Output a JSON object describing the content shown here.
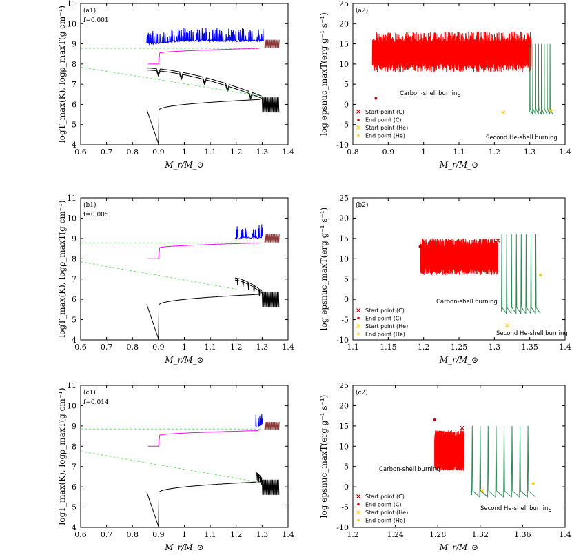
{
  "colors": {
    "carbon": "#ff0000",
    "helium": "#2e8b57",
    "tmax": "#000000",
    "rho": "#ff00ff",
    "blue": "#0000ff",
    "brown": "#8b3a3a",
    "guide": "#66dd66",
    "marker_c": "#c00000",
    "marker_he": "#ffcc00"
  },
  "shared": {
    "left_ylabel": "logT_max(K), logρ_maxT(g cm⁻¹)",
    "right_ylabel": "log epsnuc_maxT(erg g⁻¹ s⁻¹)",
    "xlabel": "M_r/M_⊙",
    "carbon_label": "Carbon-shell burning",
    "helium_label": "Second He-shell burning",
    "legend": [
      "Start point (C)",
      "End point (C)",
      "Start point (He)",
      "End point (He)"
    ]
  },
  "chart_data": [
    {
      "id": "a1",
      "panel_label": "(a1)",
      "f_label": "f=0.001",
      "type": "line",
      "xlim": [
        0.6,
        1.4
      ],
      "ylim": [
        4,
        11
      ],
      "xticks": [
        "0.6",
        "0.7",
        "0.8",
        "0.9",
        "1",
        "1.1",
        "1.2",
        "1.3",
        "1.4"
      ],
      "yticks": [
        "4",
        "5",
        "6",
        "7",
        "8",
        "9",
        "10",
        "11"
      ],
      "series": [
        {
          "name": "T_max core",
          "x": [
            0.855,
            0.9,
            0.91,
            1.0,
            1.1,
            1.2,
            1.3,
            1.36
          ],
          "y": [
            5.75,
            4.05,
            5.7,
            5.95,
            6.05,
            6.15,
            6.25,
            6.3
          ]
        },
        {
          "name": "T_max shell",
          "x": [
            0.855,
            1.0,
            1.1,
            1.2,
            1.3
          ],
          "y": [
            7.8,
            7.55,
            7.35,
            7.1,
            6.4
          ]
        },
        {
          "name": "rho_maxT",
          "x": [
            0.86,
            0.9,
            0.905,
            1.0,
            1.2,
            1.3,
            1.37
          ],
          "y": [
            8.0,
            8.0,
            8.55,
            8.6,
            8.7,
            8.78,
            8.8
          ]
        },
        {
          "name": "blue",
          "x": [
            0.855,
            1.0,
            1.2,
            1.305
          ],
          "y": [
            9.05,
            9.2,
            9.2,
            9.15
          ]
        },
        {
          "name": "guide upper",
          "x": [
            0.6,
            1.3
          ],
          "y": [
            8.78,
            8.78
          ]
        },
        {
          "name": "guide lower",
          "x": [
            0.6,
            1.3
          ],
          "y": [
            7.85,
            6.4
          ]
        }
      ]
    },
    {
      "id": "a2",
      "panel_label": "(a2)",
      "type": "line",
      "xlim": [
        0.8,
        1.4
      ],
      "ylim": [
        -10,
        25
      ],
      "xticks": [
        "0.8",
        "0.9",
        "1",
        "1.1",
        "1.2",
        "1.3",
        "1.4"
      ],
      "yticks": [
        "-10",
        "-5",
        "0",
        "5",
        "10",
        "15",
        "20",
        "25"
      ],
      "carbon": {
        "x_start": 0.855,
        "x_end": 1.305,
        "y_low": 8,
        "y_high": 18,
        "start_point": [
          1.3,
          14.5
        ],
        "end_point": [
          0.865,
          1.5
        ]
      },
      "helium": {
        "x_start": 1.3,
        "x_end": 1.365,
        "y_low": -2,
        "y_high": 15,
        "start_point": [
          1.225,
          -2
        ],
        "end_point": [
          1.36,
          -1.5
        ]
      }
    },
    {
      "id": "b1",
      "panel_label": "(b1)",
      "f_label": "f=0.005",
      "type": "line",
      "xlim": [
        0.6,
        1.4
      ],
      "ylim": [
        4,
        11
      ],
      "xticks": [
        "0.6",
        "0.7",
        "0.8",
        "0.9",
        "1",
        "1.1",
        "1.2",
        "1.3",
        "1.4"
      ],
      "yticks": [
        "4",
        "5",
        "6",
        "7",
        "8",
        "9",
        "10",
        "11"
      ],
      "series": [
        {
          "name": "T_max core",
          "x": [
            0.855,
            0.9,
            0.91,
            1.0,
            1.1,
            1.2,
            1.3,
            1.36
          ],
          "y": [
            5.75,
            4.05,
            5.7,
            5.95,
            6.05,
            6.15,
            6.25,
            6.3
          ]
        },
        {
          "name": "T_max shell",
          "x": [
            1.195,
            1.25,
            1.3
          ],
          "y": [
            7.05,
            6.9,
            6.4
          ]
        },
        {
          "name": "rho_maxT",
          "x": [
            0.86,
            0.9,
            0.905,
            1.0,
            1.2,
            1.3,
            1.37
          ],
          "y": [
            8.0,
            8.0,
            8.55,
            8.6,
            8.7,
            8.78,
            8.8
          ]
        },
        {
          "name": "blue",
          "x": [
            1.195,
            1.3
          ],
          "y": [
            9.05,
            9.1
          ]
        },
        {
          "name": "guide upper",
          "x": [
            0.6,
            1.3
          ],
          "y": [
            8.78,
            8.78
          ]
        },
        {
          "name": "guide lower",
          "x": [
            0.6,
            1.2
          ],
          "y": [
            7.85,
            6.5
          ]
        }
      ]
    },
    {
      "id": "b2",
      "panel_label": "(b2)",
      "type": "line",
      "xlim": [
        1.1,
        1.4
      ],
      "ylim": [
        -10,
        25
      ],
      "xticks": [
        "1.1",
        "1.15",
        "1.2",
        "1.25",
        "1.3",
        "1.35",
        "1.4"
      ],
      "yticks": [
        "-10",
        "-5",
        "0",
        "5",
        "10",
        "15",
        "20",
        "25"
      ],
      "carbon": {
        "x_start": 1.195,
        "x_end": 1.305,
        "y_low": 6,
        "y_high": 15,
        "start_point": [
          1.305,
          14.5
        ],
        "end_point": [
          1.195,
          13
        ]
      },
      "helium": {
        "x_start": 1.31,
        "x_end": 1.365,
        "y_low": -3,
        "y_high": 16,
        "start_point": [
          1.318,
          -6.5
        ],
        "end_point": [
          1.365,
          6
        ]
      }
    },
    {
      "id": "c1",
      "panel_label": "(c1)",
      "f_label": "f=0.014",
      "type": "line",
      "xlim": [
        0.6,
        1.4
      ],
      "ylim": [
        4,
        11
      ],
      "xticks": [
        "0.6",
        "0.7",
        "0.8",
        "0.9",
        "1",
        "1.1",
        "1.2",
        "1.3",
        "1.4"
      ],
      "yticks": [
        "4",
        "5",
        "6",
        "7",
        "8",
        "9",
        "10",
        "11"
      ],
      "series": [
        {
          "name": "T_max core",
          "x": [
            0.855,
            0.9,
            0.91,
            1.0,
            1.1,
            1.2,
            1.3,
            1.36
          ],
          "y": [
            5.75,
            4.05,
            5.7,
            5.95,
            6.05,
            6.15,
            6.25,
            6.3
          ]
        },
        {
          "name": "T_max shell",
          "x": [
            1.275,
            1.3
          ],
          "y": [
            6.7,
            6.4
          ]
        },
        {
          "name": "rho_maxT",
          "x": [
            0.86,
            0.9,
            0.905,
            1.0,
            1.2,
            1.3,
            1.37
          ],
          "y": [
            8.0,
            8.0,
            8.55,
            8.6,
            8.7,
            8.78,
            8.8
          ]
        },
        {
          "name": "blue",
          "x": [
            1.275,
            1.3
          ],
          "y": [
            9.0,
            9.1
          ]
        },
        {
          "name": "guide upper",
          "x": [
            0.6,
            1.3
          ],
          "y": [
            8.85,
            8.85
          ]
        },
        {
          "name": "guide lower",
          "x": [
            0.6,
            1.3
          ],
          "y": [
            7.75,
            6.2
          ]
        }
      ]
    },
    {
      "id": "c2",
      "panel_label": "(c2)",
      "type": "line",
      "xlim": [
        1.2,
        1.4
      ],
      "ylim": [
        -10,
        25
      ],
      "xticks": [
        "1.2",
        "1.24",
        "1.28",
        "1.32",
        "1.36",
        "1.4"
      ],
      "yticks": [
        "-10",
        "-5",
        "0",
        "5",
        "10",
        "15",
        "20",
        "25"
      ],
      "carbon": {
        "x_start": 1.277,
        "x_end": 1.305,
        "y_low": 4,
        "y_high": 14,
        "start_point": [
          1.303,
          14.5
        ],
        "end_point": [
          1.277,
          16.5
        ]
      },
      "helium": {
        "x_start": 1.312,
        "x_end": 1.372,
        "y_low": -2,
        "y_high": 15,
        "start_point": [
          1.322,
          -1
        ],
        "end_point": [
          1.37,
          0.8
        ]
      }
    }
  ]
}
